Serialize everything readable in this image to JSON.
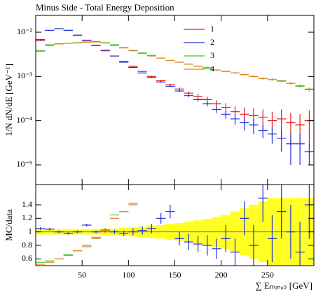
{
  "chart_data": [
    {
      "type": "scatter",
      "title": "Minus Side - Total Energy Deposition",
      "ylabel": "1/N dN/dE [GeV⁻¹]",
      "log_y": true,
      "x": [
        5,
        15,
        25,
        35,
        45,
        55,
        65,
        75,
        85,
        95,
        105,
        115,
        125,
        135,
        145,
        155,
        165,
        175,
        185,
        195,
        205,
        215,
        225,
        235,
        245,
        255,
        265,
        275,
        285,
        295
      ],
      "xlim": [
        0,
        300
      ],
      "xticks": [
        50,
        100,
        150,
        200,
        250
      ],
      "ylim": [
        3.6e-06,
        0.024
      ],
      "yticks": [
        {
          "value": 0.01,
          "label": "10⁻²"
        },
        {
          "value": 0.001,
          "label": "10⁻³"
        },
        {
          "value": 0.0001,
          "label": "10⁻⁴"
        },
        {
          "value": 1e-05,
          "label": "10⁻⁵"
        }
      ],
      "legend": "upper-right",
      "series": [
        {
          "name": "1",
          "color": "#e41a1c",
          "values": [
            0.0065,
            0.011,
            0.012,
            0.011,
            0.0085,
            0.0065,
            0.005,
            0.0038,
            0.0029,
            0.0022,
            0.0017,
            0.0013,
            0.001,
            0.0008,
            0.00065,
            0.00052,
            0.00042,
            0.00035,
            0.0003,
            0.00024,
            0.0002,
            0.00016,
            0.00014,
            0.00013,
            0.00012,
            0.0001,
            0.00011,
            9e-05,
            8e-05,
            0.0001
          ],
          "errors": [
            0.0002,
            0.0002,
            0.0002,
            0.0002,
            0.00015,
            0.00012,
            0.0001,
            8e-05,
            6e-05,
            5e-05,
            4e-05,
            4e-05,
            4e-05,
            4e-05,
            4e-05,
            4e-05,
            4e-05,
            5e-05,
            5e-05,
            5e-05,
            5e-05,
            5e-05,
            6e-05,
            6e-05,
            6e-05,
            6e-05,
            7e-05,
            6e-05,
            6e-05,
            7e-05
          ]
        },
        {
          "name": "2",
          "color": "#2233dd",
          "values": [
            0.0068,
            0.011,
            0.012,
            0.011,
            0.0086,
            0.0066,
            0.0051,
            0.0039,
            0.0029,
            0.0021,
            0.0016,
            0.0012,
            0.00095,
            0.00075,
            0.0006,
            0.00047,
            0.00037,
            0.0003,
            0.00024,
            0.00018,
            0.00014,
            0.00011,
            9e-05,
            8e-05,
            6e-05,
            5e-05,
            4e-05,
            3e-05,
            3e-05,
            2e-05
          ],
          "errors": [
            0.0002,
            0.0002,
            0.0002,
            0.0002,
            0.00015,
            0.00012,
            0.0001,
            8e-05,
            6e-05,
            5e-05,
            4e-05,
            3e-05,
            3e-05,
            3e-05,
            3e-05,
            3e-05,
            3e-05,
            3e-05,
            3e-05,
            3e-05,
            3e-05,
            3e-05,
            3e-05,
            3e-05,
            2e-05,
            2e-05,
            2e-05,
            2e-05,
            2e-05,
            1e-05
          ]
        },
        {
          "name": "3",
          "color": "#33cc33",
          "values": [
            0.0038,
            0.0052,
            0.0055,
            0.0056,
            0.0058,
            0.006,
            0.0062,
            0.0058,
            0.0052,
            0.0045,
            0.0039,
            0.0034,
            0.003,
            0.0026,
            0.0023,
            0.0021,
            0.0019,
            0.0017,
            0.0015,
            0.0014,
            0.0013,
            0.0012,
            0.0011,
            0.001,
            0.0009,
            0.00085,
            0.0008,
            0.0007,
            0.0006,
            0.0005
          ],
          "errors": [
            0.0001,
            0.0001,
            0.0001,
            0.0001,
            0.0001,
            0.0001,
            0.0001,
            0.0001,
            0.0001,
            0.0001,
            0.0001,
            8e-05,
            8e-05,
            7e-05,
            7e-05,
            6e-05,
            6e-05,
            6e-05,
            5e-05,
            5e-05,
            5e-05,
            5e-05,
            5e-05,
            5e-05,
            5e-05,
            5e-05,
            5e-05,
            5e-05,
            4e-05,
            4e-05
          ]
        },
        {
          "name": "4",
          "color": "#f08020",
          "values": [
            0.0037,
            0.005,
            0.0054,
            0.0056,
            0.0057,
            0.0059,
            0.006,
            0.0057,
            0.005,
            0.0044,
            0.0038,
            0.0033,
            0.0029,
            0.0026,
            0.0023,
            0.0021,
            0.0019,
            0.0017,
            0.0016,
            0.0014,
            0.0013,
            0.0012,
            0.0011,
            0.001,
            0.0009,
            0.00085,
            0.00078,
            0.0007,
            0.00062,
            0.00052
          ],
          "errors": [
            0.0001,
            0.0001,
            0.0001,
            0.0001,
            0.0001,
            0.0001,
            0.0001,
            0.0001,
            0.0001,
            0.0001,
            0.0001,
            8e-05,
            8e-05,
            7e-05,
            7e-05,
            6e-05,
            6e-05,
            6e-05,
            5e-05,
            5e-05,
            5e-05,
            5e-05,
            5e-05,
            5e-05,
            5e-05,
            5e-05,
            5e-05,
            5e-05,
            4e-05,
            4e-05
          ]
        }
      ]
    },
    {
      "type": "scatter",
      "ylabel": "MC/data",
      "xlabel": "∑ Eₘᵢₙᵤₛ [GeV]",
      "x": [
        5,
        15,
        25,
        35,
        45,
        55,
        65,
        75,
        85,
        95,
        105,
        115,
        125,
        135,
        145,
        155,
        165,
        175,
        185,
        195,
        205,
        215,
        225,
        235,
        245,
        255,
        265,
        275,
        285,
        295
      ],
      "xlim": [
        0,
        300
      ],
      "xticks": [
        50,
        100,
        150,
        200,
        250
      ],
      "ylim": [
        0.5,
        1.7
      ],
      "yticks": [
        0.6,
        0.8,
        1,
        1.2,
        1.4
      ],
      "reference": 1,
      "band": {
        "color": "#ffff22",
        "values": [
          0.04,
          0.04,
          0.04,
          0.04,
          0.04,
          0.04,
          0.04,
          0.05,
          0.05,
          0.06,
          0.07,
          0.08,
          0.09,
          0.1,
          0.12,
          0.13,
          0.15,
          0.17,
          0.19,
          0.22,
          0.25,
          0.3,
          0.35,
          0.4,
          0.45,
          0.5,
          0.5,
          0.5,
          0.5,
          0.5
        ]
      },
      "series": [
        {
          "color": "#2233dd",
          "values": [
            1.05,
            1.04,
            1.0,
            0.98,
            1.0,
            1.1,
            1.0,
            1.02,
            1.0,
            0.98,
            1.0,
            1.02,
            1.05,
            1.2,
            1.3,
            0.9,
            0.85,
            0.82,
            0.8,
            0.75,
            0.9,
            0.7,
            1.2,
            0.8,
            1.5,
            0.9,
            1.3,
            1.0,
            0.7,
            1.4
          ],
          "errors": [
            0.02,
            0.02,
            0.02,
            0.02,
            0.02,
            0.02,
            0.02,
            0.03,
            0.03,
            0.04,
            0.05,
            0.06,
            0.07,
            0.08,
            0.1,
            0.1,
            0.12,
            0.12,
            0.15,
            0.15,
            0.2,
            0.2,
            0.25,
            0.3,
            0.35,
            0.35,
            0.4,
            0.4,
            0.45,
            0.5
          ]
        },
        {
          "color": "#33cc33",
          "values": [
            0.55,
            0.57,
            0.6,
            0.66,
            0.72,
            0.8,
            0.92,
            1.03,
            1.25,
            1.3,
            1.42,
            null,
            null,
            null,
            null,
            null,
            null,
            null,
            null,
            null,
            null,
            null,
            null,
            null,
            null,
            null,
            null,
            null,
            null,
            null
          ]
        },
        {
          "color": "#f08020",
          "values": [
            0.52,
            0.55,
            0.6,
            0.65,
            0.72,
            0.78,
            0.9,
            1.02,
            1.2,
            1.3,
            1.4,
            null,
            null,
            null,
            null,
            null,
            null,
            null,
            null,
            null,
            null,
            null,
            null,
            null,
            null,
            null,
            null,
            null,
            null,
            null
          ]
        }
      ]
    }
  ]
}
